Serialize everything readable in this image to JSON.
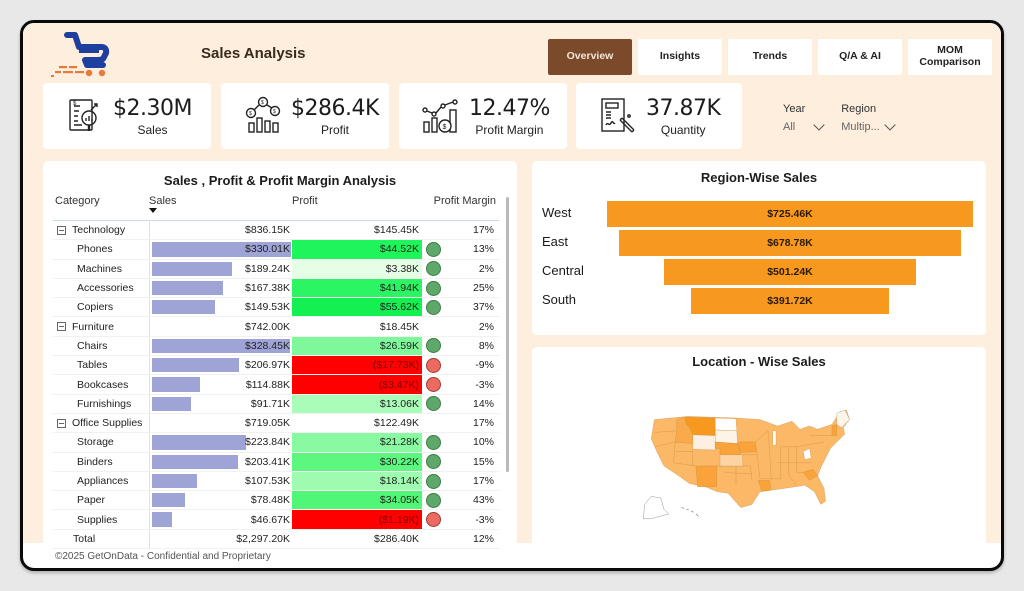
{
  "header": {
    "title": "Sales Analysis",
    "logo": "shopping-cart-logo"
  },
  "tabs": [
    {
      "label": "Overview",
      "active": true
    },
    {
      "label": "Insights",
      "active": false
    },
    {
      "label": "Trends",
      "active": false
    },
    {
      "label": "Q/A & AI",
      "active": false
    },
    {
      "label": "MOM Comparison",
      "active": false
    }
  ],
  "kpis": [
    {
      "value": "$2.30M",
      "label": "Sales",
      "icon": "sales-report-icon"
    },
    {
      "value": "$286.4K",
      "label": "Profit",
      "icon": "profit-coins-icon"
    },
    {
      "value": "12.47%",
      "label": "Profit Margin",
      "icon": "growth-chart-icon"
    },
    {
      "value": "37.87K",
      "label": "Quantity",
      "icon": "order-form-icon"
    }
  ],
  "filters": [
    {
      "label": "Year",
      "value": "All"
    },
    {
      "label": "Region",
      "value": "Multip..."
    }
  ],
  "matrix": {
    "title": "Sales , Profit & Profit Margin Analysis",
    "columns": [
      "Category",
      "Sales",
      "Profit",
      "Profit Margin"
    ],
    "sort_column": "Sales",
    "max_sub_sales": 330.01,
    "rows": [
      {
        "level": 0,
        "name": "Technology",
        "sales": "$836.15K",
        "profit": "$145.45K",
        "margin": "17%"
      },
      {
        "level": 1,
        "name": "Phones",
        "sales": "$330.01K",
        "sales_k": 330.01,
        "profit": "$44.52K",
        "margin": "13%",
        "profit_color": "#1ef55a",
        "status": "positive"
      },
      {
        "level": 1,
        "name": "Machines",
        "sales": "$189.24K",
        "sales_k": 189.24,
        "profit": "$3.38K",
        "margin": "2%",
        "profit_color": "#e6fde6",
        "status": "positive"
      },
      {
        "level": 1,
        "name": "Accessories",
        "sales": "$167.38K",
        "sales_k": 167.38,
        "profit": "$41.94K",
        "margin": "25%",
        "profit_color": "#2cf563",
        "status": "positive"
      },
      {
        "level": 1,
        "name": "Copiers",
        "sales": "$149.53K",
        "sales_k": 149.53,
        "profit": "$55.62K",
        "margin": "37%",
        "profit_color": "#14f052",
        "status": "positive"
      },
      {
        "level": 0,
        "name": "Furniture",
        "sales": "$742.00K",
        "profit": "$18.45K",
        "margin": "2%"
      },
      {
        "level": 1,
        "name": "Chairs",
        "sales": "$328.45K",
        "sales_k": 328.45,
        "profit": "$26.59K",
        "margin": "8%",
        "profit_color": "#7ef89a",
        "status": "positive"
      },
      {
        "level": 1,
        "name": "Tables",
        "sales": "$206.97K",
        "sales_k": 206.97,
        "profit": "($17.73K)",
        "margin": "-9%",
        "profit_color": "#fe0000",
        "status": "negative"
      },
      {
        "level": 1,
        "name": "Bookcases",
        "sales": "$114.88K",
        "sales_k": 114.88,
        "profit": "($3.47K)",
        "margin": "-3%",
        "profit_color": "#fe0000",
        "status": "negative"
      },
      {
        "level": 1,
        "name": "Furnishings",
        "sales": "$91.71K",
        "sales_k": 91.71,
        "profit": "$13.06K",
        "margin": "14%",
        "profit_color": "#aafcb9",
        "status": "positive"
      },
      {
        "level": 0,
        "name": "Office Supplies",
        "sales": "$719.05K",
        "profit": "$122.49K",
        "margin": "17%"
      },
      {
        "level": 1,
        "name": "Storage",
        "sales": "$223.84K",
        "sales_k": 223.84,
        "profit": "$21.28K",
        "margin": "10%",
        "profit_color": "#8afaa2",
        "status": "positive"
      },
      {
        "level": 1,
        "name": "Binders",
        "sales": "$203.41K",
        "sales_k": 203.41,
        "profit": "$30.22K",
        "margin": "15%",
        "profit_color": "#5cf77e",
        "status": "positive"
      },
      {
        "level": 1,
        "name": "Appliances",
        "sales": "$107.53K",
        "sales_k": 107.53,
        "profit": "$18.14K",
        "margin": "17%",
        "profit_color": "#9ffbb0",
        "status": "positive"
      },
      {
        "level": 1,
        "name": "Paper",
        "sales": "$78.48K",
        "sales_k": 78.48,
        "profit": "$34.05K",
        "margin": "43%",
        "profit_color": "#50f676",
        "status": "positive"
      },
      {
        "level": 1,
        "name": "Supplies",
        "sales": "$46.67K",
        "sales_k": 46.67,
        "profit": "($1.19K)",
        "margin": "-3%",
        "profit_color": "#fe0000",
        "status": "negative"
      },
      {
        "level": 2,
        "name": "Total",
        "sales": "$2,297.20K",
        "profit": "$286.40K",
        "margin": "12%"
      }
    ]
  },
  "chart_data": {
    "type": "bar",
    "title": "Region-Wise Sales",
    "categories": [
      "West",
      "East",
      "Central",
      "South"
    ],
    "values": [
      725.46,
      678.78,
      501.24,
      391.72
    ],
    "labels": [
      "$725.46K",
      "$678.78K",
      "$501.24K",
      "$391.72K"
    ],
    "units": "K USD",
    "orientation": "funnel",
    "color": "#f7991f"
  },
  "map": {
    "title": "Location - Wise Sales",
    "base_color": "#fbb866",
    "dark_color": "#f7991f",
    "light_color": "#fdf5ea"
  },
  "footer": {
    "text": "©2025 GetOnData - Confidential and Proprietary"
  }
}
